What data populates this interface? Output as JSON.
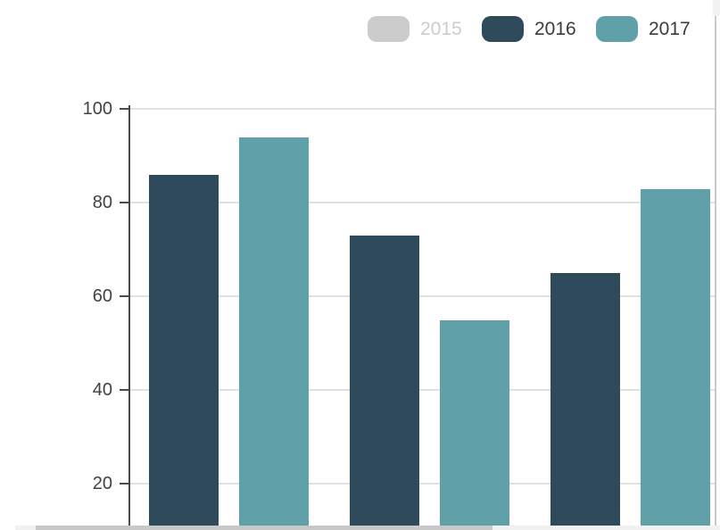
{
  "chart_data": {
    "type": "bar",
    "title": "",
    "xlabel": "",
    "ylabel": "",
    "num_groups": 3,
    "x_axis_labels_visible": false,
    "series": [
      {
        "name": "2015",
        "hidden": true,
        "color": "#cccccc",
        "values": []
      },
      {
        "name": "2016",
        "hidden": false,
        "color": "#2e4a5b",
        "values": [
          86,
          73,
          65
        ]
      },
      {
        "name": "2017",
        "hidden": false,
        "color": "#5fa0a9",
        "values": [
          94,
          55,
          83
        ]
      }
    ],
    "yticks": [
      20,
      40,
      60,
      80,
      100
    ],
    "ylim": [
      0,
      100
    ],
    "grid": true,
    "legend_position": "top-right",
    "note": "plot is cropped at the bottom of the viewport; x-axis baseline and category labels are not visible"
  },
  "colors": {
    "grid_line": "#e1e1e1",
    "axis_line": "#4a4a4a",
    "tick_label": "#3f4345",
    "legend_label": "#373d3f",
    "legend_disabled": "#cccccc",
    "scrollbar_track": "#f1f1f1",
    "scrollbar_thumb": "#c8c8c8",
    "right_border": "#c9c9c9"
  }
}
